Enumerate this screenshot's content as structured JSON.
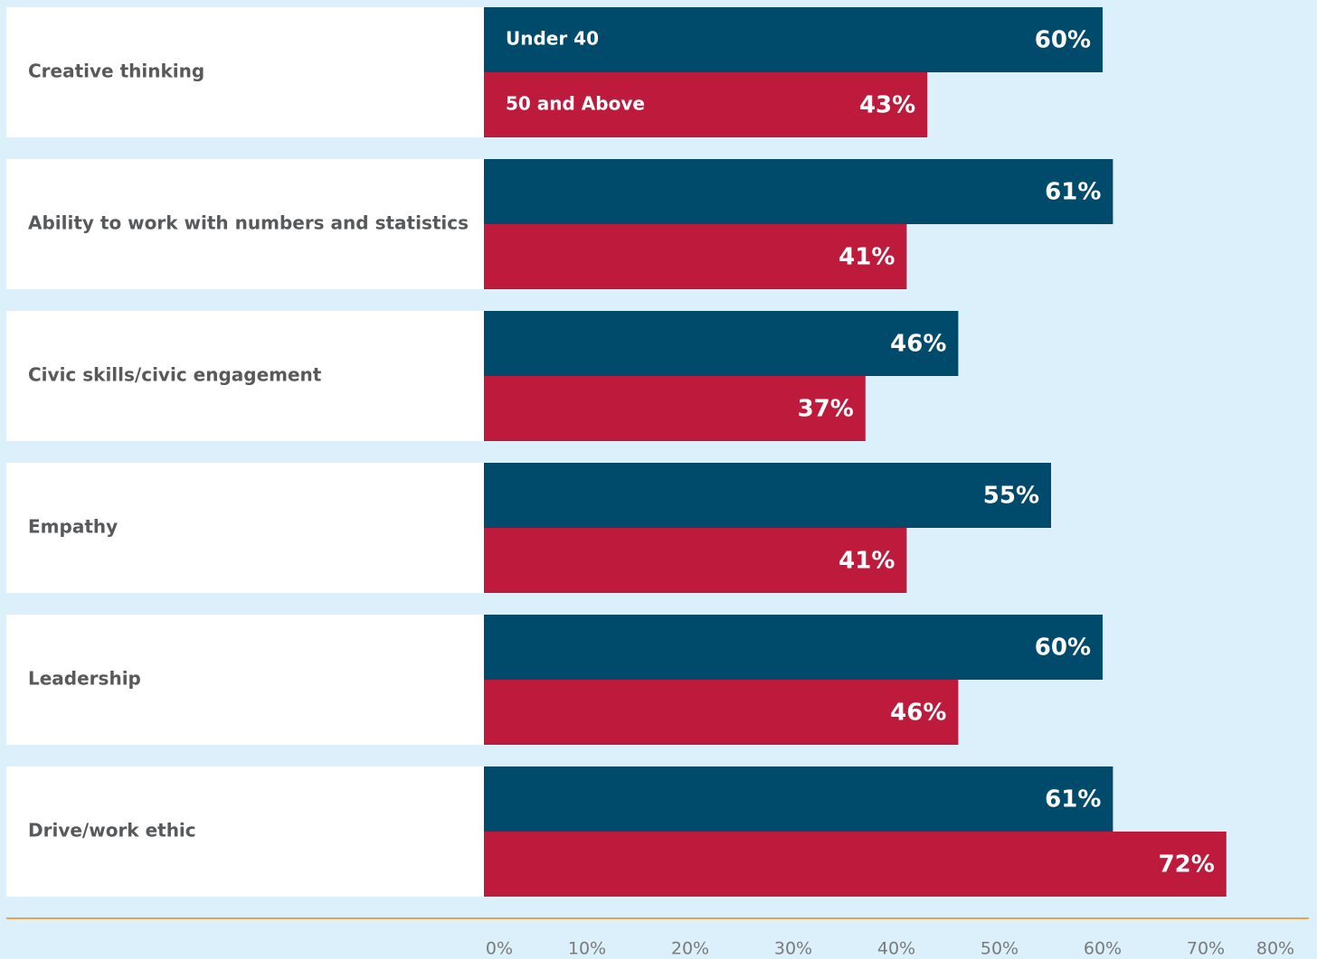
{
  "chart_data": {
    "type": "hbar",
    "categories": [
      "Creative thinking",
      "Ability to work with numbers and statistics",
      "Civic skills/civic engagement",
      "Empathy",
      "Leadership",
      "Drive/work ethic"
    ],
    "series": [
      {
        "name": "Under 40",
        "color": "#004a6b",
        "values": [
          60,
          61,
          46,
          55,
          60,
          61
        ],
        "value_labels": [
          "60%",
          "61%",
          "46%",
          "55%",
          "60%",
          "61%"
        ]
      },
      {
        "name": "50 and Above",
        "color": "#be1a3c",
        "values": [
          43,
          41,
          37,
          41,
          46,
          72
        ],
        "value_labels": [
          "43%",
          "41%",
          "37%",
          "41%",
          "46%",
          "72%"
        ]
      }
    ],
    "xlim": [
      0,
      80
    ],
    "xticks": [
      {
        "value": 0,
        "label": "0%"
      },
      {
        "value": 10,
        "label": "10%"
      },
      {
        "value": 20,
        "label": "20%"
      },
      {
        "value": 30,
        "label": "30%"
      },
      {
        "value": 40,
        "label": "40%"
      },
      {
        "value": 50,
        "label": "50%"
      },
      {
        "value": 60,
        "label": "60%"
      },
      {
        "value": 70,
        "label": "70%"
      },
      {
        "value": 80,
        "label": "80%"
      }
    ]
  }
}
